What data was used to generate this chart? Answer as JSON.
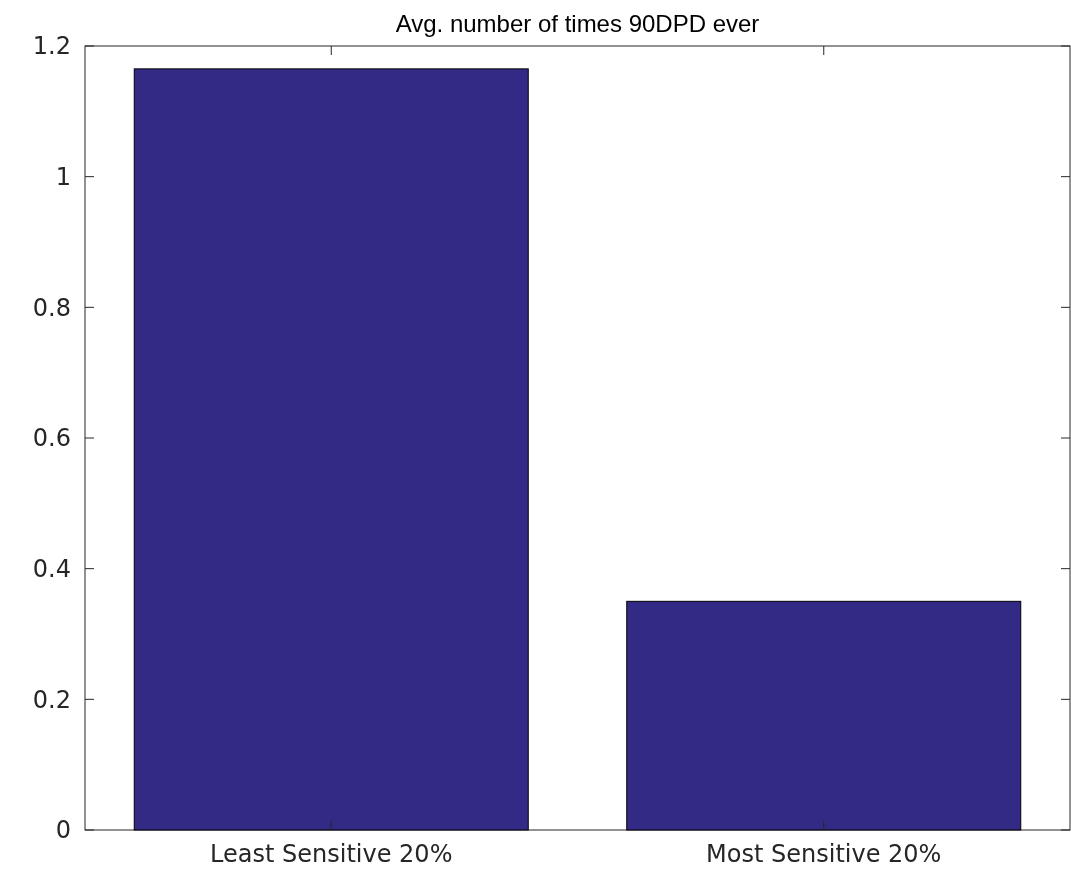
{
  "chart_data": {
    "type": "bar",
    "title": "Avg. number of times 90DPD ever",
    "categories": [
      "Least Sensitive 20%",
      "Most Sensitive 20%"
    ],
    "values": [
      1.165,
      0.35
    ],
    "color": "#332a85",
    "ylim": [
      0,
      1.2
    ],
    "yticks": [
      0,
      0.2,
      0.4,
      0.6,
      0.8,
      1,
      1.2
    ],
    "grid": false
  }
}
